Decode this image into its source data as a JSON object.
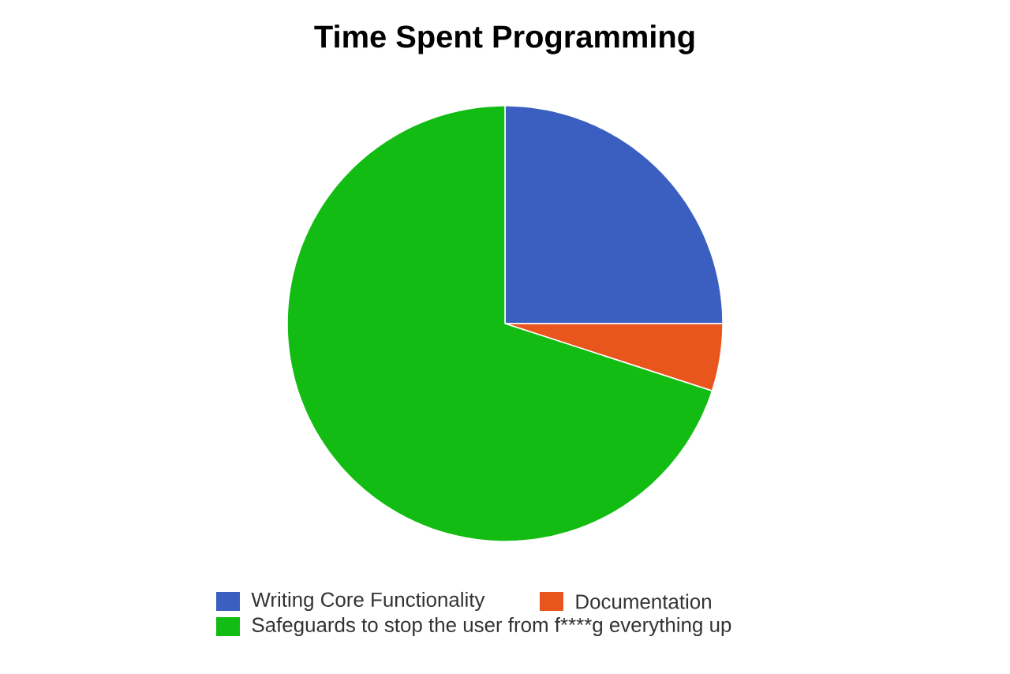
{
  "chart_data": {
    "type": "pie",
    "title": "Time Spent Programming",
    "categories": [
      "Writing Core Functionality",
      "Documentation",
      "Safeguards to stop the user from f****g everything up"
    ],
    "values": [
      25,
      5,
      70
    ],
    "colors": [
      "#3a5fc0",
      "#e8561e",
      "#12bc12"
    ],
    "legend": "bottom"
  }
}
